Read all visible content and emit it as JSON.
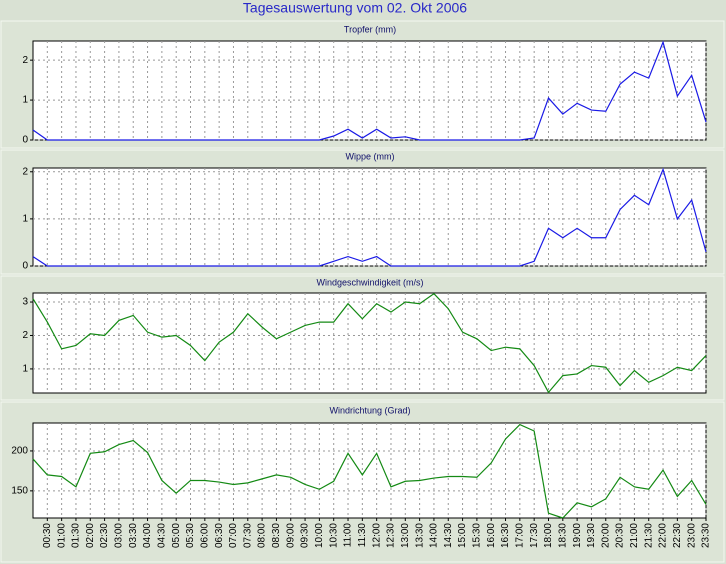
{
  "page_title": "Tagesauswertung vom 02. Okt 2006",
  "chart_data": [
    {
      "type": "line",
      "title": "Tropfer (mm)",
      "color": "#1a1ae6",
      "grid": true,
      "ylim": [
        0,
        2.48
      ],
      "yticks": [
        0,
        1,
        2
      ],
      "values": [
        0.25,
        0,
        0,
        0,
        0,
        0,
        0,
        0,
        0,
        0,
        0,
        0,
        0,
        0,
        0,
        0,
        0,
        0,
        0,
        0,
        0,
        0.1,
        0.27,
        0.05,
        0.27,
        0.05,
        0.08,
        0,
        0,
        0,
        0,
        0,
        0,
        0,
        0,
        0.05,
        1.05,
        0.65,
        0.92,
        0.75,
        0.72,
        1.4,
        1.7,
        1.55,
        2.45,
        1.1,
        1.62,
        0.45
      ]
    },
    {
      "type": "line",
      "title": "Wippe (mm)",
      "color": "#1a1ae6",
      "grid": true,
      "ylim": [
        0,
        2.08
      ],
      "yticks": [
        0,
        1,
        2
      ],
      "values": [
        0.2,
        0,
        0,
        0,
        0,
        0,
        0,
        0,
        0,
        0,
        0,
        0,
        0,
        0,
        0,
        0,
        0,
        0,
        0,
        0,
        0,
        0.1,
        0.2,
        0.1,
        0.2,
        0,
        0,
        0,
        0,
        0,
        0,
        0,
        0,
        0,
        0,
        0.1,
        0.8,
        0.6,
        0.8,
        0.6,
        0.6,
        1.2,
        1.5,
        1.3,
        2.05,
        1.0,
        1.4,
        0.3
      ]
    },
    {
      "type": "line",
      "title": "Windgeschwindigkeit (m/s)",
      "color": "#148a14",
      "grid": true,
      "ylim": [
        0.28,
        3.27
      ],
      "yticks": [
        1,
        2,
        3
      ],
      "values": [
        3.1,
        2.4,
        1.6,
        1.7,
        2.05,
        2.0,
        2.45,
        2.6,
        2.1,
        1.95,
        2.0,
        1.7,
        1.25,
        1.8,
        2.1,
        2.65,
        2.25,
        1.9,
        2.1,
        2.3,
        2.4,
        2.4,
        2.95,
        2.5,
        2.95,
        2.7,
        3.0,
        2.95,
        3.25,
        2.8,
        2.1,
        1.9,
        1.55,
        1.65,
        1.6,
        1.1,
        0.3,
        0.8,
        0.85,
        1.1,
        1.05,
        0.5,
        0.95,
        0.6,
        0.8,
        1.05,
        0.95,
        1.4
      ]
    },
    {
      "type": "line",
      "title": "Windrichtung (Grad)",
      "color": "#148a14",
      "grid": true,
      "ylim": [
        116,
        235
      ],
      "yticks": [
        150,
        200
      ],
      "categories": [
        null,
        "00:30",
        "01:00",
        "01:30",
        "02:00",
        "02:30",
        "03:00",
        "03:30",
        "04:00",
        "04:30",
        "05:00",
        "05:30",
        "06:00",
        "06:30",
        "07:00",
        "07:30",
        "08:00",
        "08:30",
        "09:00",
        "09:30",
        "10:00",
        "10:30",
        "11:00",
        "11:30",
        "12:00",
        "12:30",
        "13:00",
        "13:30",
        "14:00",
        "14:30",
        "15:00",
        "15:30",
        "16:00",
        "16:30",
        "17:00",
        "17:30",
        "18:00",
        "18:30",
        "19:00",
        "19:30",
        "20:00",
        "20:30",
        "21:00",
        "21:30",
        "22:00",
        "22:30",
        "23:00",
        "23:30"
      ],
      "values": [
        190,
        170,
        168,
        155,
        197,
        199,
        208,
        213,
        198,
        163,
        147,
        163,
        163,
        161,
        158,
        160,
        165,
        170,
        167,
        158,
        152,
        162,
        197,
        170,
        197,
        155,
        162,
        163,
        166,
        168,
        168,
        167,
        185,
        215,
        233,
        225,
        122,
        116,
        135,
        130,
        140,
        167,
        155,
        152,
        176,
        143,
        163,
        133
      ]
    }
  ]
}
